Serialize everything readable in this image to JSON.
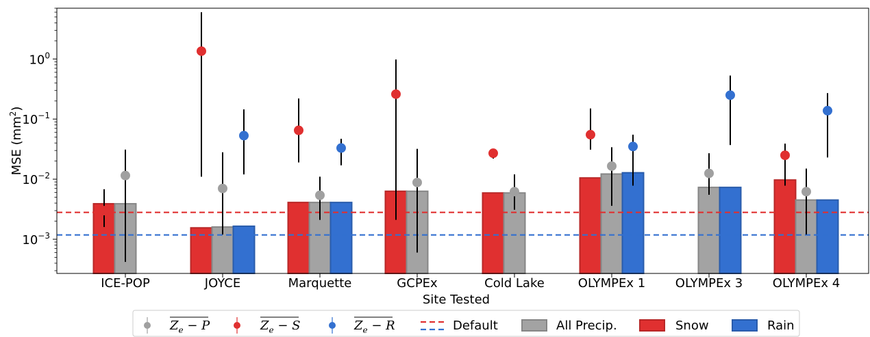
{
  "chart_data": {
    "type": "bar",
    "title": "",
    "xlabel": "Site Tested",
    "ylabel": "MSE (mm",
    "ylabel_sup": "2",
    "ylabel_end": ")",
    "yscale": "log",
    "ylim": [
      0.00027,
      7
    ],
    "y_ticks": [
      {
        "value": 0.001,
        "base": "10",
        "exp": "−3"
      },
      {
        "value": 0.01,
        "base": "10",
        "exp": "−2"
      },
      {
        "value": 0.1,
        "base": "10",
        "exp": "−1"
      },
      {
        "value": 1,
        "base": "10",
        "exp": "0"
      }
    ],
    "categories": [
      "ICE-POP",
      "JOYCE",
      "Marquette",
      "GCPEx",
      "Cold Lake",
      "OLYMPEx 1",
      "OLYMPEx 3",
      "OLYMPEx 4"
    ],
    "bar_series": [
      {
        "name": "Snow",
        "color": "#e03030",
        "values": [
          0.0039,
          0.00155,
          0.0041,
          0.0063,
          0.0059,
          0.0105,
          null,
          0.0097
        ]
      },
      {
        "name": "All Precip.",
        "color": "#a3a3a3",
        "values": [
          0.0039,
          0.0016,
          0.0041,
          0.0063,
          0.0059,
          0.0122,
          0.0073,
          0.0045
        ]
      },
      {
        "name": "Rain",
        "color": "#3370d0",
        "values": [
          null,
          0.00165,
          0.0041,
          null,
          null,
          0.0128,
          0.0073,
          0.0045
        ]
      }
    ],
    "point_series": [
      {
        "name_base": "Z",
        "name_sub": "e",
        "name_rest": " − S",
        "color": "#e03030",
        "points": [
          {
            "y": 0.003,
            "lo": 0.0016,
            "hi": 0.0068
          },
          {
            "y": 1.35,
            "lo": 0.011,
            "hi": 6.0
          },
          {
            "y": 0.065,
            "lo": 0.019,
            "hi": 0.22
          },
          {
            "y": 0.26,
            "lo": 0.0021,
            "hi": 0.98
          },
          {
            "y": 0.027,
            "lo": 0.022,
            "hi": 0.028
          },
          {
            "y": 0.055,
            "lo": 0.031,
            "hi": 0.15
          },
          null,
          {
            "y": 0.025,
            "lo": 0.0078,
            "hi": 0.039
          }
        ]
      },
      {
        "name_base": "Z",
        "name_sub": "e",
        "name_rest": " − P",
        "color": "#a0a0a0",
        "points": [
          {
            "y": 0.0115,
            "lo": 0.00042,
            "hi": 0.031
          },
          {
            "y": 0.007,
            "lo": 0.0012,
            "hi": 0.028
          },
          {
            "y": 0.0054,
            "lo": 0.0021,
            "hi": 0.011
          },
          {
            "y": 0.0088,
            "lo": 0.0006,
            "hi": 0.032
          },
          {
            "y": 0.0062,
            "lo": 0.0031,
            "hi": 0.012
          },
          {
            "y": 0.0165,
            "lo": 0.0036,
            "hi": 0.034
          },
          {
            "y": 0.0125,
            "lo": 0.0055,
            "hi": 0.027
          },
          {
            "y": 0.0062,
            "lo": 0.0012,
            "hi": 0.015
          }
        ]
      },
      {
        "name_base": "Z",
        "name_sub": "e",
        "name_rest": " − R",
        "color": "#3370d0",
        "points": [
          null,
          {
            "y": 0.053,
            "lo": 0.012,
            "hi": 0.145
          },
          {
            "y": 0.033,
            "lo": 0.017,
            "hi": 0.047
          },
          null,
          null,
          {
            "y": 0.035,
            "lo": 0.0078,
            "hi": 0.055
          },
          {
            "y": 0.25,
            "lo": 0.037,
            "hi": 0.53
          },
          {
            "y": 0.138,
            "lo": 0.023,
            "hi": 0.27
          }
        ]
      }
    ],
    "reference_lines": [
      {
        "name": "Default",
        "series": "Snow",
        "value": 0.0028,
        "color": "#e03030",
        "style": "dashed"
      },
      {
        "name": "Default",
        "series": "Rain",
        "value": 0.00118,
        "color": "#3370d0",
        "style": "dashed"
      }
    ],
    "legend": {
      "placement": "bottom",
      "entries": [
        {
          "kind": "point",
          "series_index": 1
        },
        {
          "kind": "point",
          "series_index": 0
        },
        {
          "kind": "point",
          "series_index": 2
        },
        {
          "kind": "lines",
          "label": "Default"
        },
        {
          "kind": "bar",
          "label": "All Precip.",
          "color": "#a3a3a3"
        },
        {
          "kind": "bar",
          "label": "Snow",
          "color": "#e03030"
        },
        {
          "kind": "bar",
          "label": "Rain",
          "color": "#3370d0"
        }
      ]
    },
    "grid": false
  }
}
